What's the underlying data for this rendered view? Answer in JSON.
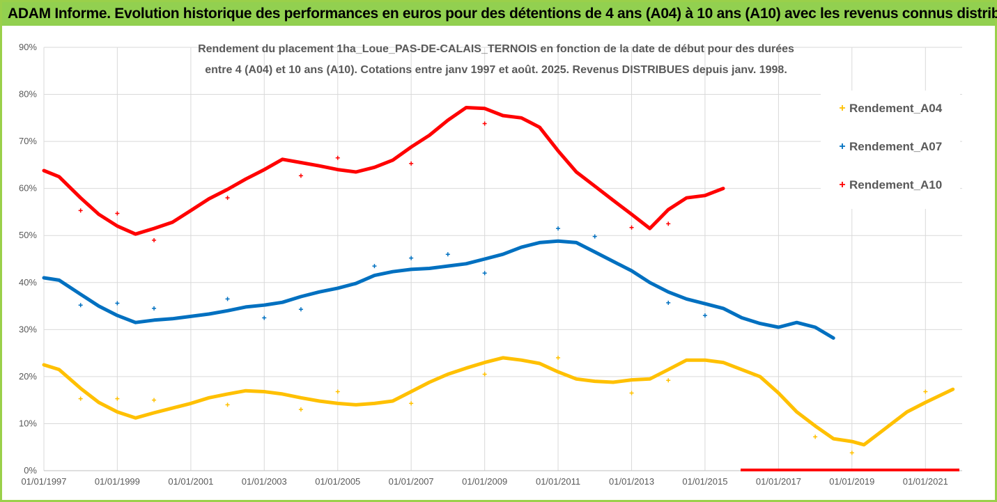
{
  "header": {
    "title": "ADAM Informe. Evolution historique des performances en euros pour des détentions de 4 ans (A04) à 10 ans (A10) avec les revenus connus distribués",
    "bg_color": "#92d050"
  },
  "chart_data": {
    "type": "scatter",
    "title_line1": "Rendement du placement 1ha_Loue_PAS-DE-CALAIS_TERNOIS en fonction de la date de début pour des durées",
    "title_line2": "entre 4 (A04) et 10 ans (A10). Cotations entre janv 1997 et août. 2025. Revenus DISTRIBUES depuis janv. 1998.",
    "xlabel": "",
    "ylabel": "",
    "x_tick_labels": [
      "01/01/1997",
      "01/01/1999",
      "01/01/2001",
      "01/01/2003",
      "01/01/2005",
      "01/01/2007",
      "01/01/2009",
      "01/01/2011",
      "01/01/2013",
      "01/01/2015",
      "01/01/2017",
      "01/01/2019",
      "01/01/2021"
    ],
    "xlim": [
      "1997-01-01",
      "2022-01-01"
    ],
    "y_tick_labels": [
      "0%",
      "10%",
      "20%",
      "30%",
      "40%",
      "50%",
      "60%",
      "70%",
      "80%",
      "90%"
    ],
    "ylim": [
      0,
      90
    ],
    "grid": true,
    "legend_position": "right",
    "series": [
      {
        "name": "Rendement_A04",
        "color": "#ffc000",
        "points": [
          [
            "1997-01-01",
            22.5
          ],
          [
            "1997-06-01",
            21.5
          ],
          [
            "1998-01-01",
            17.5
          ],
          [
            "1998-07-01",
            14.5
          ],
          [
            "1999-01-01",
            12.5
          ],
          [
            "1999-07-01",
            11.2
          ],
          [
            "2000-01-01",
            12.3
          ],
          [
            "2000-07-01",
            13.3
          ],
          [
            "2001-01-01",
            14.3
          ],
          [
            "2001-07-01",
            15.5
          ],
          [
            "2002-01-01",
            16.3
          ],
          [
            "2002-07-01",
            17.0
          ],
          [
            "2003-01-01",
            16.8
          ],
          [
            "2003-07-01",
            16.3
          ],
          [
            "2004-01-01",
            15.5
          ],
          [
            "2004-07-01",
            14.8
          ],
          [
            "2005-01-01",
            14.3
          ],
          [
            "2005-07-01",
            14.0
          ],
          [
            "2006-01-01",
            14.3
          ],
          [
            "2006-07-01",
            14.8
          ],
          [
            "2007-01-01",
            16.8
          ],
          [
            "2007-07-01",
            18.8
          ],
          [
            "2008-01-01",
            20.5
          ],
          [
            "2008-07-01",
            21.8
          ],
          [
            "2009-01-01",
            23.0
          ],
          [
            "2009-07-01",
            24.0
          ],
          [
            "2010-01-01",
            23.5
          ],
          [
            "2010-07-01",
            22.8
          ],
          [
            "2011-01-01",
            21.0
          ],
          [
            "2011-07-01",
            19.5
          ],
          [
            "2012-01-01",
            19.0
          ],
          [
            "2012-07-01",
            18.8
          ],
          [
            "2013-01-01",
            19.3
          ],
          [
            "2013-07-01",
            19.5
          ],
          [
            "2014-01-01",
            21.5
          ],
          [
            "2014-07-01",
            23.5
          ],
          [
            "2015-01-01",
            23.5
          ],
          [
            "2015-07-01",
            23.0
          ],
          [
            "2016-01-01",
            21.5
          ],
          [
            "2016-07-01",
            20.0
          ],
          [
            "2017-01-01",
            16.5
          ],
          [
            "2017-07-01",
            12.5
          ],
          [
            "2018-01-01",
            9.5
          ],
          [
            "2018-07-01",
            6.8
          ],
          [
            "2019-01-01",
            6.2
          ],
          [
            "2019-05-01",
            5.5
          ],
          [
            "2020-01-01",
            9.5
          ],
          [
            "2020-07-01",
            12.5
          ],
          [
            "2021-01-01",
            14.5
          ],
          [
            "2021-10-01",
            17.3
          ]
        ],
        "outliers": [
          [
            "1998-01-01",
            15.3
          ],
          [
            "1999-01-01",
            15.3
          ],
          [
            "2000-01-01",
            15.0
          ],
          [
            "2002-01-01",
            14.0
          ],
          [
            "2004-01-01",
            13.0
          ],
          [
            "2005-01-01",
            16.8
          ],
          [
            "2007-01-01",
            14.3
          ],
          [
            "2009-01-01",
            20.5
          ],
          [
            "2011-01-01",
            24.0
          ],
          [
            "2013-01-01",
            16.5
          ],
          [
            "2014-01-01",
            19.2
          ],
          [
            "2018-01-01",
            7.2
          ],
          [
            "2019-01-01",
            3.8
          ],
          [
            "2021-01-01",
            16.8
          ]
        ]
      },
      {
        "name": "Rendement_A07",
        "color": "#0070c0",
        "points": [
          [
            "1997-01-01",
            41.0
          ],
          [
            "1997-06-01",
            40.5
          ],
          [
            "1998-01-01",
            37.5
          ],
          [
            "1998-07-01",
            35.0
          ],
          [
            "1999-01-01",
            33.0
          ],
          [
            "1999-07-01",
            31.5
          ],
          [
            "2000-01-01",
            32.0
          ],
          [
            "2000-07-01",
            32.3
          ],
          [
            "2001-01-01",
            32.8
          ],
          [
            "2001-07-01",
            33.3
          ],
          [
            "2002-01-01",
            34.0
          ],
          [
            "2002-07-01",
            34.8
          ],
          [
            "2003-01-01",
            35.2
          ],
          [
            "2003-07-01",
            35.8
          ],
          [
            "2004-01-01",
            37.0
          ],
          [
            "2004-07-01",
            38.0
          ],
          [
            "2005-01-01",
            38.8
          ],
          [
            "2005-07-01",
            39.8
          ],
          [
            "2006-01-01",
            41.5
          ],
          [
            "2006-07-01",
            42.3
          ],
          [
            "2007-01-01",
            42.8
          ],
          [
            "2007-07-01",
            43.0
          ],
          [
            "2008-01-01",
            43.5
          ],
          [
            "2008-07-01",
            44.0
          ],
          [
            "2009-01-01",
            45.0
          ],
          [
            "2009-07-01",
            46.0
          ],
          [
            "2010-01-01",
            47.5
          ],
          [
            "2010-07-01",
            48.5
          ],
          [
            "2011-01-01",
            48.8
          ],
          [
            "2011-07-01",
            48.5
          ],
          [
            "2012-01-01",
            46.5
          ],
          [
            "2012-07-01",
            44.5
          ],
          [
            "2013-01-01",
            42.5
          ],
          [
            "2013-07-01",
            40.0
          ],
          [
            "2014-01-01",
            38.0
          ],
          [
            "2014-07-01",
            36.5
          ],
          [
            "2015-01-01",
            35.5
          ],
          [
            "2015-07-01",
            34.5
          ],
          [
            "2016-01-01",
            32.5
          ],
          [
            "2016-07-01",
            31.3
          ],
          [
            "2017-01-01",
            30.5
          ],
          [
            "2017-07-01",
            31.5
          ],
          [
            "2018-01-01",
            30.5
          ],
          [
            "2018-07-01",
            28.2
          ]
        ],
        "outliers": [
          [
            "1998-01-01",
            35.2
          ],
          [
            "1999-01-01",
            35.6
          ],
          [
            "2000-01-01",
            34.5
          ],
          [
            "2002-01-01",
            36.5
          ],
          [
            "2003-01-01",
            32.5
          ],
          [
            "2004-01-01",
            34.3
          ],
          [
            "2006-01-01",
            43.5
          ],
          [
            "2007-01-01",
            45.2
          ],
          [
            "2008-01-01",
            46.0
          ],
          [
            "2009-01-01",
            42.0
          ],
          [
            "2011-01-01",
            51.5
          ],
          [
            "2012-01-01",
            49.8
          ],
          [
            "2014-01-01",
            35.7
          ],
          [
            "2015-01-01",
            33.0
          ]
        ]
      },
      {
        "name": "Rendement_A10",
        "color": "#ff0000",
        "points": [
          [
            "1997-01-01",
            63.8
          ],
          [
            "1997-06-01",
            62.5
          ],
          [
            "1998-01-01",
            58.0
          ],
          [
            "1998-07-01",
            54.5
          ],
          [
            "1999-01-01",
            52.0
          ],
          [
            "1999-07-01",
            50.3
          ],
          [
            "2000-01-01",
            51.5
          ],
          [
            "2000-07-01",
            52.8
          ],
          [
            "2001-01-01",
            55.3
          ],
          [
            "2001-07-01",
            57.8
          ],
          [
            "2002-01-01",
            59.8
          ],
          [
            "2002-07-01",
            62.0
          ],
          [
            "2003-01-01",
            64.0
          ],
          [
            "2003-07-01",
            66.2
          ],
          [
            "2004-01-01",
            65.5
          ],
          [
            "2004-07-01",
            64.8
          ],
          [
            "2005-01-01",
            64.0
          ],
          [
            "2005-07-01",
            63.5
          ],
          [
            "2006-01-01",
            64.5
          ],
          [
            "2006-07-01",
            66.0
          ],
          [
            "2007-01-01",
            68.8
          ],
          [
            "2007-07-01",
            71.3
          ],
          [
            "2008-01-01",
            74.5
          ],
          [
            "2008-07-01",
            77.2
          ],
          [
            "2009-01-01",
            77.0
          ],
          [
            "2009-07-01",
            75.5
          ],
          [
            "2010-01-01",
            75.0
          ],
          [
            "2010-07-01",
            73.0
          ],
          [
            "2011-01-01",
            68.0
          ],
          [
            "2011-07-01",
            63.5
          ],
          [
            "2012-01-01",
            60.5
          ],
          [
            "2012-07-01",
            57.5
          ],
          [
            "2013-01-01",
            54.5
          ],
          [
            "2013-07-01",
            51.5
          ],
          [
            "2014-01-01",
            55.5
          ],
          [
            "2014-07-01",
            58.0
          ],
          [
            "2015-01-01",
            58.5
          ],
          [
            "2015-07-01",
            60.0
          ]
        ],
        "outliers": [
          [
            "1998-01-01",
            55.3
          ],
          [
            "1999-01-01",
            54.7
          ],
          [
            "2000-01-01",
            49.0
          ],
          [
            "2002-01-01",
            58.0
          ],
          [
            "2004-01-01",
            62.7
          ],
          [
            "2005-01-01",
            66.5
          ],
          [
            "2007-01-01",
            65.3
          ],
          [
            "2009-01-01",
            73.8
          ],
          [
            "2013-01-01",
            51.7
          ],
          [
            "2014-01-01",
            52.5
          ]
        ],
        "zero_segment": [
          [
            "2015-07-01",
            0
          ],
          [
            "2022-01-01",
            0
          ]
        ]
      }
    ]
  }
}
